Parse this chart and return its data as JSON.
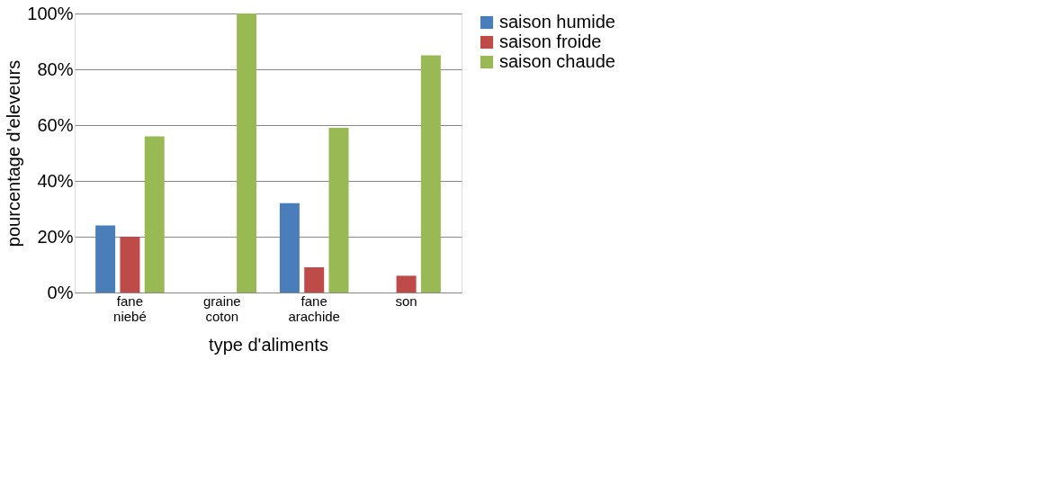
{
  "chart_data": {
    "type": "bar",
    "xlabel": "type d'aliments",
    "ylabel": "pourcentage d'eleveurs",
    "categories": [
      "fane niebé",
      "graine coton",
      "fane arachide",
      "son"
    ],
    "series": [
      {
        "name": "saison humide",
        "color": "#4a7ebb",
        "values": [
          24,
          0,
          32,
          0
        ]
      },
      {
        "name": "saison froide",
        "color": "#be4b48",
        "values": [
          20,
          0,
          9,
          6
        ]
      },
      {
        "name": "saison chaude",
        "color": "#98b954",
        "values": [
          56,
          100,
          59,
          85
        ]
      }
    ],
    "ylim": [
      0,
      100
    ],
    "yticks": [
      {
        "value": 0,
        "label": "0%"
      },
      {
        "value": 20,
        "label": "20%"
      },
      {
        "value": 40,
        "label": "40%"
      },
      {
        "value": 60,
        "label": "60%"
      },
      {
        "value": 80,
        "label": "80%"
      },
      {
        "value": 100,
        "label": "100%"
      }
    ],
    "grid": "y",
    "legend": "right"
  }
}
